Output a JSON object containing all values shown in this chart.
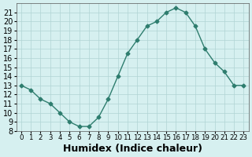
{
  "x": [
    0,
    1,
    2,
    3,
    4,
    5,
    6,
    7,
    8,
    9,
    10,
    11,
    12,
    13,
    14,
    15,
    16,
    17,
    18,
    19,
    20,
    21,
    22,
    23
  ],
  "y": [
    13,
    12.5,
    11.5,
    11,
    10,
    9,
    8.5,
    8.5,
    9.5,
    11.5,
    14,
    16.5,
    18,
    19.5,
    20,
    21,
    21.5,
    21,
    19.5,
    17,
    15.5,
    14.5,
    13,
    13
  ],
  "line_color": "#2e7d6e",
  "marker": "D",
  "marker_size": 2.5,
  "bg_color": "#d6f0f0",
  "grid_color": "#b0d4d4",
  "xlabel": "Humidex (Indice chaleur)",
  "xlabel_fontsize": 9,
  "tick_fontsize": 7,
  "ylim": [
    8,
    22
  ],
  "xlim": [
    -0.5,
    23.5
  ],
  "yticks": [
    8,
    9,
    10,
    11,
    12,
    13,
    14,
    15,
    16,
    17,
    18,
    19,
    20,
    21
  ],
  "xticks": [
    0,
    1,
    2,
    3,
    4,
    5,
    6,
    7,
    8,
    9,
    10,
    11,
    12,
    13,
    14,
    15,
    16,
    17,
    18,
    19,
    20,
    21,
    22,
    23
  ]
}
